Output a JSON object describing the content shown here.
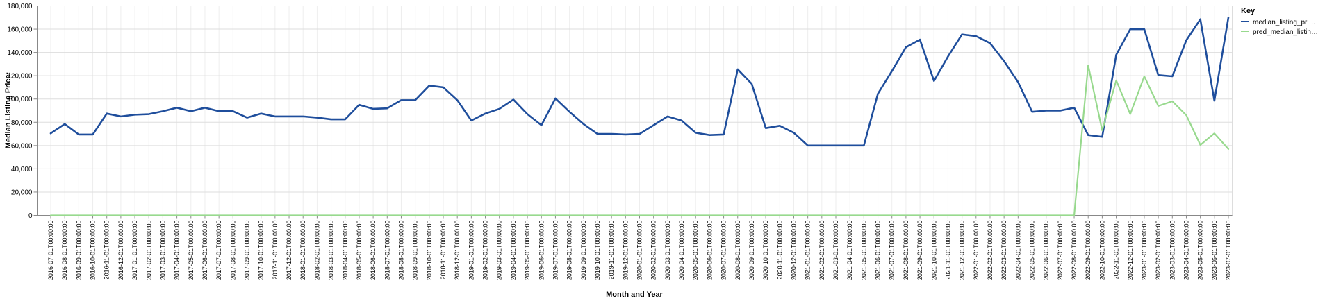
{
  "chart_data": {
    "type": "line",
    "xlabel": "Month and Year",
    "ylabel": "Median Listing Price:",
    "ylim": [
      0,
      180000
    ],
    "yticks": [
      0,
      20000,
      40000,
      60000,
      80000,
      100000,
      120000,
      140000,
      160000,
      180000
    ],
    "ytick_labels": [
      "0",
      "20,000",
      "40,000",
      "60,000",
      "80,000",
      "100,000",
      "120,000",
      "140,000",
      "160,000",
      "180,000"
    ],
    "grid": true,
    "legend": {
      "title": "Key",
      "position": "top-right"
    },
    "x": [
      "2016-07-01T00:00:00",
      "2016-08-01T00:00:00",
      "2016-09-01T00:00:00",
      "2016-10-01T00:00:00",
      "2016-11-01T00:00:00",
      "2016-12-01T00:00:00",
      "2017-01-01T00:00:00",
      "2017-02-01T00:00:00",
      "2017-03-01T00:00:00",
      "2017-04-01T00:00:00",
      "2017-05-01T00:00:00",
      "2017-06-01T00:00:00",
      "2017-07-01T00:00:00",
      "2017-08-01T00:00:00",
      "2017-09-01T00:00:00",
      "2017-10-01T00:00:00",
      "2017-11-01T00:00:00",
      "2017-12-01T00:00:00",
      "2018-01-01T00:00:00",
      "2018-02-01T00:00:00",
      "2018-03-01T00:00:00",
      "2018-04-01T00:00:00",
      "2018-05-01T00:00:00",
      "2018-06-01T00:00:00",
      "2018-07-01T00:00:00",
      "2018-08-01T00:00:00",
      "2018-09-01T00:00:00",
      "2018-10-01T00:00:00",
      "2018-11-01T00:00:00",
      "2018-12-01T00:00:00",
      "2019-01-01T00:00:00",
      "2019-02-01T00:00:00",
      "2019-03-01T00:00:00",
      "2019-04-01T00:00:00",
      "2019-05-01T00:00:00",
      "2019-06-01T00:00:00",
      "2019-07-01T00:00:00",
      "2019-08-01T00:00:00",
      "2019-09-01T00:00:00",
      "2019-10-01T00:00:00",
      "2019-11-01T00:00:00",
      "2019-12-01T00:00:00",
      "2020-01-01T00:00:00",
      "2020-02-01T00:00:00",
      "2020-03-01T00:00:00",
      "2020-04-01T00:00:00",
      "2020-05-01T00:00:00",
      "2020-06-01T00:00:00",
      "2020-07-01T00:00:00",
      "2020-08-01T00:00:00",
      "2020-09-01T00:00:00",
      "2020-10-01T00:00:00",
      "2020-11-01T00:00:00",
      "2020-12-01T00:00:00",
      "2021-01-01T00:00:00",
      "2021-02-01T00:00:00",
      "2021-03-01T00:00:00",
      "2021-04-01T00:00:00",
      "2021-05-01T00:00:00",
      "2021-06-01T00:00:00",
      "2021-07-01T00:00:00",
      "2021-08-01T00:00:00",
      "2021-09-01T00:00:00",
      "2021-10-01T00:00:00",
      "2021-11-01T00:00:00",
      "2021-12-01T00:00:00",
      "2022-01-01T00:00:00",
      "2022-02-01T00:00:00",
      "2022-03-01T00:00:00",
      "2022-04-01T00:00:00",
      "2022-05-01T00:00:00",
      "2022-06-01T00:00:00",
      "2022-07-01T00:00:00",
      "2022-08-01T00:00:00",
      "2022-09-01T00:00:00",
      "2022-10-01T00:00:00",
      "2022-11-01T00:00:00",
      "2022-12-01T00:00:00",
      "2023-01-01T00:00:00",
      "2023-02-01T00:00:00",
      "2023-03-01T00:00:00",
      "2023-04-01T00:00:00",
      "2023-05-01T00:00:00",
      "2023-06-01T00:00:00",
      "2023-07-01T00:00:00"
    ],
    "series": [
      {
        "name": "median_listing_pri…",
        "color": "#1f4e9c",
        "values": [
          70500,
          78500,
          69500,
          69500,
          87500,
          85000,
          86500,
          87000,
          89500,
          92500,
          89500,
          92500,
          89500,
          89500,
          84000,
          87500,
          85000,
          85000,
          85000,
          84000,
          82500,
          82500,
          95000,
          91500,
          92000,
          99000,
          99000,
          111500,
          110000,
          99000,
          81500,
          87500,
          91500,
          99500,
          87000,
          77500,
          100500,
          89000,
          78500,
          70000,
          70000,
          69500,
          70000,
          77500,
          85000,
          81500,
          71000,
          69000,
          69500,
          125500,
          113000,
          75000,
          77000,
          71000,
          60000,
          60000,
          60000,
          60000,
          60000,
          104500,
          124000,
          144500,
          151000,
          115500,
          136500,
          155500,
          154000,
          148000,
          132500,
          114500,
          89000,
          90000,
          90000,
          92500,
          69000,
          67500,
          138000,
          160000,
          160000,
          120500,
          119500,
          150500,
          168500,
          98500,
          170000
        ]
      },
      {
        "name": "pred_median_listin…",
        "color": "#98d98e",
        "values": [
          0,
          0,
          0,
          0,
          0,
          0,
          0,
          0,
          0,
          0,
          0,
          0,
          0,
          0,
          0,
          0,
          0,
          0,
          0,
          0,
          0,
          0,
          0,
          0,
          0,
          0,
          0,
          0,
          0,
          0,
          0,
          0,
          0,
          0,
          0,
          0,
          0,
          0,
          0,
          0,
          0,
          0,
          0,
          0,
          0,
          0,
          0,
          0,
          0,
          0,
          0,
          0,
          0,
          0,
          0,
          0,
          0,
          0,
          0,
          0,
          0,
          0,
          0,
          0,
          0,
          0,
          0,
          0,
          0,
          0,
          0,
          0,
          0,
          0,
          129000,
          73000,
          116000,
          87000,
          119500,
          94000,
          98000,
          86000,
          60500,
          70500,
          57000
        ]
      }
    ]
  }
}
